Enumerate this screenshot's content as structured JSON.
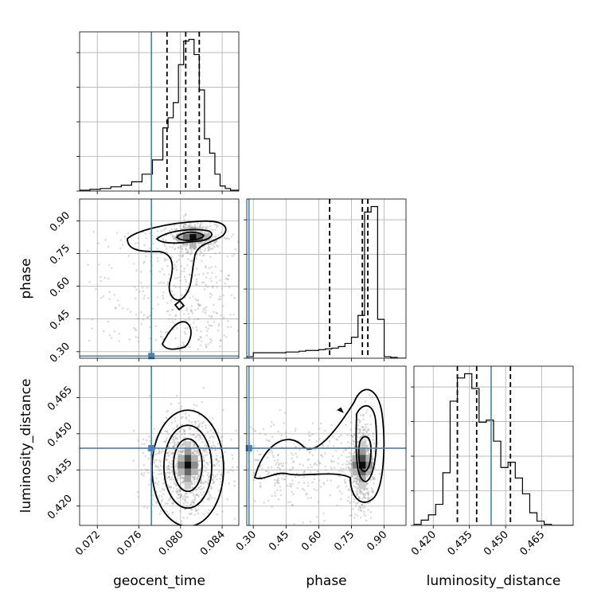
{
  "chart_data": {
    "type": "corner",
    "parameters": [
      {
        "key": "geocent_time",
        "label": "geocent_time",
        "truth": 0.0772,
        "range": [
          0.0703,
          0.0856
        ],
        "ticks": [
          0.072,
          0.076,
          0.08,
          0.084
        ],
        "tick_labels": [
          "0.072",
          "0.076",
          "0.080",
          "0.084"
        ],
        "quantiles": [
          0.0787,
          0.0805,
          0.0818
        ]
      },
      {
        "key": "phase",
        "label": "phase",
        "truth": 0.28,
        "range": [
          0.27,
          1.0
        ],
        "ticks": [
          0.3,
          0.45,
          0.6,
          0.75,
          0.9
        ],
        "tick_labels": [
          "0.30",
          "0.45",
          "0.60",
          "0.75",
          "0.90"
        ],
        "quantiles": [
          0.65,
          0.8,
          0.825
        ]
      },
      {
        "key": "luminosity_distance",
        "label": "luminosity_distance",
        "truth": 0.444,
        "range": [
          0.412,
          0.478
        ],
        "ticks": [
          0.42,
          0.435,
          0.45,
          0.465
        ],
        "tick_labels": [
          "0.420",
          "0.435",
          "0.450",
          "0.465"
        ],
        "quantiles": [
          0.43,
          0.438,
          0.452
        ]
      }
    ],
    "histograms": [
      {
        "param": "geocent_time",
        "bin_edges": [
          0.0703,
          0.0713,
          0.0723,
          0.0733,
          0.0743,
          0.0753,
          0.0763,
          0.0773,
          0.0783,
          0.0788,
          0.0793,
          0.0798,
          0.0803,
          0.0808,
          0.0813,
          0.0818,
          0.0823,
          0.0828,
          0.0833,
          0.0838,
          0.0843,
          0.0848,
          0.0856
        ],
        "counts": [
          1,
          2,
          3,
          5,
          7,
          11,
          20,
          37,
          75,
          87,
          105,
          150,
          178,
          180,
          162,
          120,
          62,
          45,
          20,
          6,
          3,
          1
        ]
      },
      {
        "param": "phase",
        "bin_edges": [
          0.27,
          0.3,
          0.33,
          0.36,
          0.39,
          0.42,
          0.45,
          0.48,
          0.51,
          0.54,
          0.57,
          0.6,
          0.63,
          0.66,
          0.69,
          0.72,
          0.75,
          0.78,
          0.81,
          0.84,
          0.87,
          0.9,
          0.93,
          0.96,
          1.0
        ],
        "counts": [
          2,
          7,
          7,
          7,
          7,
          7,
          8,
          8,
          9,
          10,
          10,
          11,
          12,
          13,
          15,
          19,
          27,
          55,
          188,
          195,
          50,
          2,
          1,
          0
        ]
      },
      {
        "param": "luminosity_distance",
        "bin_edges": [
          0.412,
          0.415,
          0.418,
          0.421,
          0.424,
          0.427,
          0.43,
          0.433,
          0.436,
          0.439,
          0.442,
          0.445,
          0.448,
          0.451,
          0.454,
          0.457,
          0.46,
          0.463,
          0.466,
          0.469,
          0.472,
          0.478
        ],
        "counts": [
          1,
          5,
          10,
          20,
          50,
          118,
          140,
          144,
          130,
          98,
          100,
          80,
          55,
          60,
          45,
          30,
          12,
          4,
          1,
          0,
          0
        ]
      }
    ],
    "pair_peaks": [
      {
        "x": "geocent_time",
        "y": "phase",
        "peak": [
          0.0812,
          0.825
        ]
      },
      {
        "x": "geocent_time",
        "y": "luminosity_distance",
        "peak": [
          0.0807,
          0.437
        ]
      },
      {
        "x": "phase",
        "y": "luminosity_distance",
        "peak": [
          0.8,
          0.437
        ]
      }
    ],
    "truth_color": "#4682b4",
    "grid": true
  }
}
